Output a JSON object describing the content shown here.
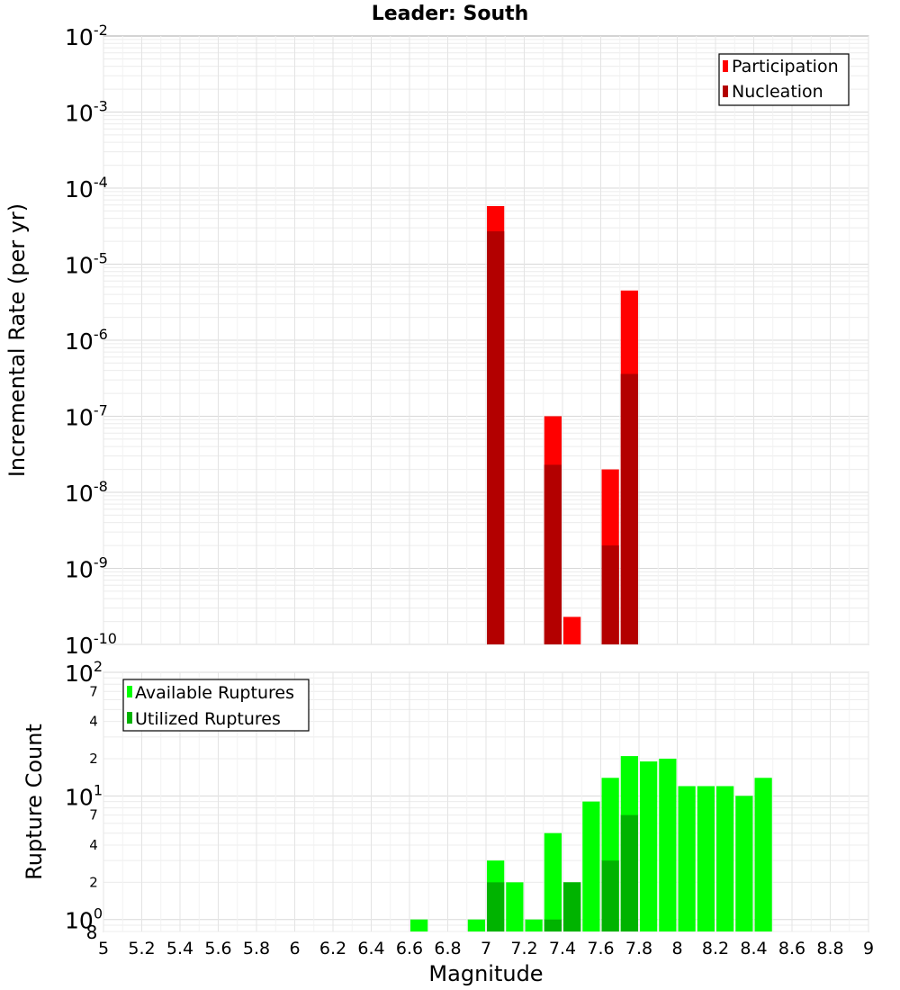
{
  "chart_data": [
    {
      "type": "bar",
      "title": "Leader: South",
      "xlabel": "",
      "ylabel": "Incremental Rate (per yr)",
      "xlim": [
        5,
        9
      ],
      "ylim": [
        1e-10,
        0.01
      ],
      "yscale": "log",
      "grid": true,
      "legend_position": "top-right",
      "y_ticks": [
        {
          "base": "10",
          "exp": "-10",
          "value": 1e-10
        },
        {
          "base": "10",
          "exp": "-9",
          "value": 1e-09
        },
        {
          "base": "10",
          "exp": "-8",
          "value": 1e-08
        },
        {
          "base": "10",
          "exp": "-7",
          "value": 1e-07
        },
        {
          "base": "10",
          "exp": "-6",
          "value": 1e-06
        },
        {
          "base": "10",
          "exp": "-5",
          "value": 1e-05
        },
        {
          "base": "10",
          "exp": "-4",
          "value": 0.0001
        },
        {
          "base": "10",
          "exp": "-3",
          "value": 0.001
        },
        {
          "base": "10",
          "exp": "-2",
          "value": 0.01
        }
      ],
      "series": [
        {
          "name": "Participation",
          "color": "#ff0000",
          "x": [
            7.05,
            7.35,
            7.45,
            7.65,
            7.75
          ],
          "values": [
            5.8e-05,
            1e-07,
            2.3e-10,
            2e-08,
            4.5e-06
          ]
        },
        {
          "name": "Nucleation",
          "color": "#b30000",
          "x": [
            7.05,
            7.35,
            7.65,
            7.75
          ],
          "values": [
            2.7e-05,
            2.3e-08,
            2e-09,
            3.6e-07
          ]
        }
      ]
    },
    {
      "type": "bar",
      "title": "",
      "xlabel": "Magnitude",
      "ylabel": "Rupture Count",
      "xlim": [
        5,
        9
      ],
      "ylim": [
        0.8,
        100
      ],
      "yscale": "log",
      "grid": true,
      "legend_position": "top-left",
      "x_ticks": [
        "5",
        "5.2",
        "5.4",
        "5.6",
        "5.8",
        "6",
        "6.2",
        "6.4",
        "6.6",
        "6.8",
        "7",
        "7.2",
        "7.4",
        "7.6",
        "7.8",
        "8",
        "8.2",
        "8.4",
        "8.6",
        "8.8",
        "9"
      ],
      "y_major_ticks": [
        {
          "base": "10",
          "exp": "0",
          "value": 1
        },
        {
          "base": "10",
          "exp": "1",
          "value": 10
        },
        {
          "base": "10",
          "exp": "2",
          "value": 100
        }
      ],
      "y_minor_ticks": [
        {
          "label": "8",
          "value": 0.8
        },
        {
          "label": "2",
          "value": 2
        },
        {
          "label": "4",
          "value": 4
        },
        {
          "label": "7",
          "value": 7
        },
        {
          "label": "2",
          "value": 20
        },
        {
          "label": "4",
          "value": 40
        },
        {
          "label": "7",
          "value": 70
        }
      ],
      "series": [
        {
          "name": "Available Ruptures",
          "color": "#00ff00",
          "x": [
            6.65,
            6.95,
            7.05,
            7.15,
            7.25,
            7.35,
            7.45,
            7.55,
            7.65,
            7.75,
            7.85,
            7.95,
            8.05,
            8.15,
            8.25,
            8.35,
            8.45
          ],
          "values": [
            1,
            1,
            3,
            2,
            1,
            5,
            2,
            9,
            14,
            21,
            19,
            20,
            12,
            12,
            12,
            10,
            14
          ]
        },
        {
          "name": "Utilized Ruptures",
          "color": "#00b300",
          "x": [
            7.05,
            7.35,
            7.45,
            7.65,
            7.75
          ],
          "values": [
            2,
            1,
            2,
            3,
            7
          ]
        }
      ]
    }
  ]
}
